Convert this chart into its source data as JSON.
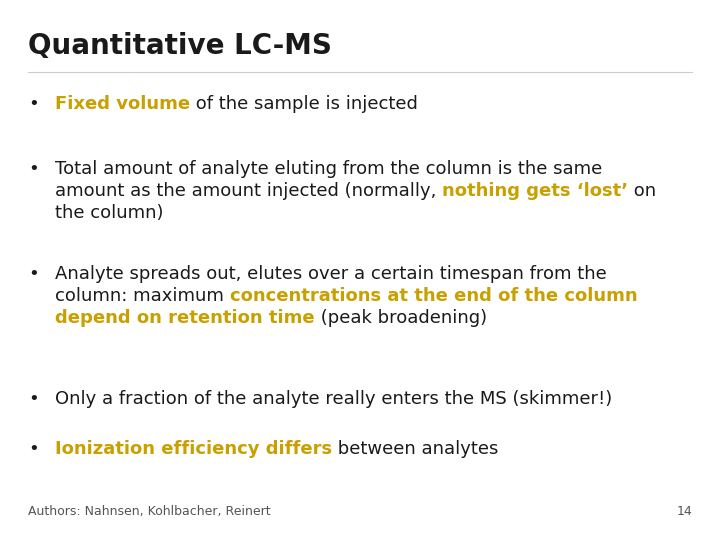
{
  "title": "Quantitative LC-MS",
  "title_color": "#1a1a1a",
  "title_fontsize": 20,
  "background_color": "#ffffff",
  "black_color": "#1a1a1a",
  "gold_color": "#C8A000",
  "footer_text": "Authors: Nahnsen, Kohlbacher, Reinert",
  "footer_page": "14",
  "footer_fontsize": 9,
  "bullet_fontsize": 13,
  "bullet_char": "•",
  "bullets": [
    [
      {
        "text": "Fixed volume",
        "color": "#C8A000",
        "bold": true
      },
      {
        "text": " of the sample is injected",
        "color": "#1a1a1a",
        "bold": false
      }
    ],
    [
      {
        "text": "Total amount of analyte eluting from the column is the same\namount as the amount injected (normally, ",
        "color": "#1a1a1a",
        "bold": false
      },
      {
        "text": "nothing gets ‘lost’",
        "color": "#C8A000",
        "bold": true
      },
      {
        "text": " on\nthe column)",
        "color": "#1a1a1a",
        "bold": false
      }
    ],
    [
      {
        "text": "Analyte spreads out, elutes over a certain timespan from the\ncolumn: maximum ",
        "color": "#1a1a1a",
        "bold": false
      },
      {
        "text": "concentrations at the end of the column\ndepend on retention time",
        "color": "#C8A000",
        "bold": true
      },
      {
        "text": " (peak broadening)",
        "color": "#1a1a1a",
        "bold": false
      }
    ],
    [
      {
        "text": "Only a fraction of the analyte really enters the MS (skimmer!)",
        "color": "#1a1a1a",
        "bold": false
      }
    ],
    [
      {
        "text": "Ionization efficiency differs",
        "color": "#C8A000",
        "bold": true
      },
      {
        "text": " between analytes",
        "color": "#1a1a1a",
        "bold": false
      }
    ]
  ]
}
